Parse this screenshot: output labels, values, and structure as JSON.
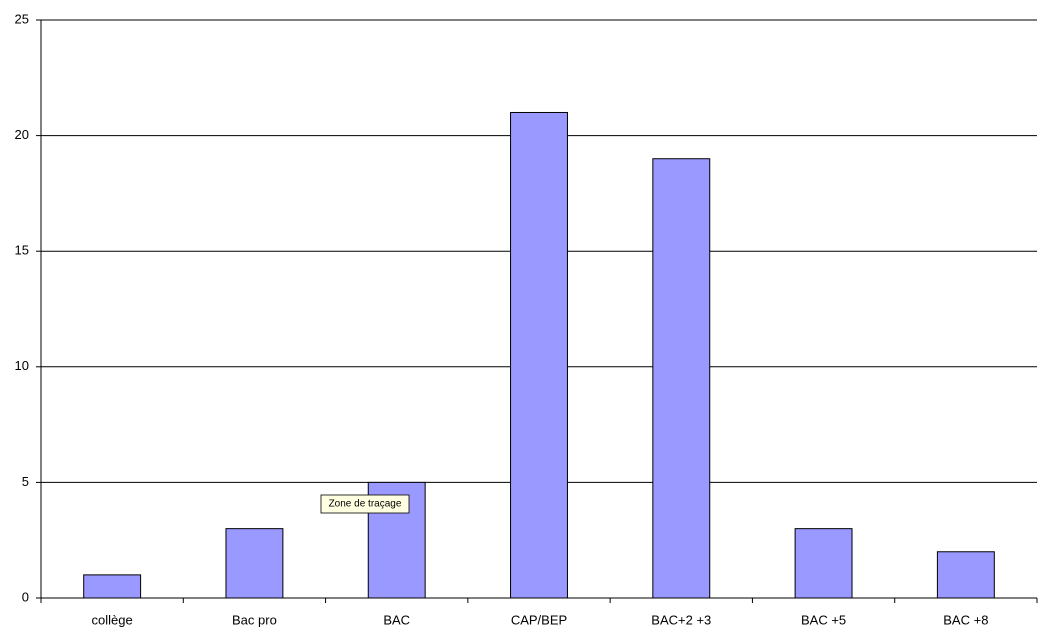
{
  "chart_data": {
    "type": "bar",
    "categories": [
      "collège",
      "Bac pro",
      "BAC",
      "CAP/BEP",
      "BAC+2 +3",
      "BAC +5",
      "BAC +8"
    ],
    "values": [
      1,
      3,
      5,
      21,
      19,
      3,
      2
    ],
    "color": "#9999ff",
    "ylim": [
      0,
      25
    ],
    "yticks": [
      0,
      5,
      10,
      15,
      20,
      25
    ],
    "grid": true,
    "tooltip": "Zone de traçage"
  }
}
